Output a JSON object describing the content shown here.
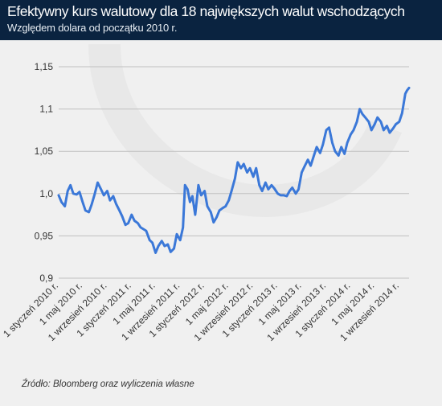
{
  "header": {
    "title": "Efektywny kurs walutowy dla 18 największych walut wschodzących",
    "subtitle": "Względem dolara od początku 2010 r."
  },
  "source": "Źródło: Bloomberg oraz wyliczenia własne",
  "colors": {
    "header_bg": "#0a2340",
    "panel_bg": "#f0f0f0",
    "line": "#3b78d8",
    "grid": "#bfbfbf"
  },
  "chart_data": {
    "type": "line",
    "title": "Efektywny kurs walutowy dla 18 największych walut wschodzących",
    "subtitle": "Względem dolara od początku 2010 r.",
    "xlabel": "",
    "ylabel": "",
    "ylim": [
      0.9,
      1.15
    ],
    "yticks": [
      0.9,
      0.95,
      1.0,
      1.05,
      1.1,
      1.15
    ],
    "ytick_labels": [
      "0,9",
      "0,95",
      "1,0",
      "1,05",
      "1,1",
      "1,15"
    ],
    "grid": "horizontal",
    "xlim": [
      "2010-01-01",
      "2014-10-20"
    ],
    "xtick_labels": [
      {
        "date": "2010-01-01",
        "label": "1 styczeń 2010 r."
      },
      {
        "date": "2010-05-01",
        "label": "1 maj 2010 r."
      },
      {
        "date": "2010-09-01",
        "label": "1 wrzesień 2010 r."
      },
      {
        "date": "2011-01-01",
        "label": "1 styczeń 2011 r."
      },
      {
        "date": "2011-05-01",
        "label": "1 maj 2011 r."
      },
      {
        "date": "2011-09-01",
        "label": "1 wrzesień 2011 r."
      },
      {
        "date": "2012-01-01",
        "label": "1 styczeń 2012 r."
      },
      {
        "date": "2012-05-01",
        "label": "1 maj 2012 r."
      },
      {
        "date": "2012-09-01",
        "label": "1 wrzesień 2012 r."
      },
      {
        "date": "2013-01-01",
        "label": "1 styczeń 2013 r."
      },
      {
        "date": "2013-05-01",
        "label": "1 maj 2013 r."
      },
      {
        "date": "2013-09-01",
        "label": "1 wrzesień 2013 r."
      },
      {
        "date": "2014-01-01",
        "label": "1 styczeń 2014 r."
      },
      {
        "date": "2014-05-01",
        "label": "1 maj 2014 r."
      },
      {
        "date": "2014-09-01",
        "label": "1 wrzesień 2014 r."
      }
    ],
    "series": [
      {
        "points": [
          [
            "2010-01-01",
            0.998
          ],
          [
            "2010-01-15",
            0.99
          ],
          [
            "2010-02-01",
            0.985
          ],
          [
            "2010-02-15",
            1.003
          ],
          [
            "2010-03-01",
            1.01
          ],
          [
            "2010-03-15",
            1.0
          ],
          [
            "2010-04-01",
            0.999
          ],
          [
            "2010-04-15",
            1.002
          ],
          [
            "2010-05-01",
            0.99
          ],
          [
            "2010-05-15",
            0.98
          ],
          [
            "2010-06-01",
            0.978
          ],
          [
            "2010-06-15",
            0.987
          ],
          [
            "2010-07-01",
            1.0
          ],
          [
            "2010-07-15",
            1.013
          ],
          [
            "2010-08-01",
            1.005
          ],
          [
            "2010-08-15",
            0.998
          ],
          [
            "2010-09-01",
            1.003
          ],
          [
            "2010-09-15",
            0.992
          ],
          [
            "2010-10-01",
            0.997
          ],
          [
            "2010-10-15",
            0.988
          ],
          [
            "2010-11-01",
            0.98
          ],
          [
            "2010-11-15",
            0.973
          ],
          [
            "2010-12-01",
            0.963
          ],
          [
            "2010-12-15",
            0.965
          ],
          [
            "2011-01-01",
            0.975
          ],
          [
            "2011-01-15",
            0.968
          ],
          [
            "2011-02-01",
            0.965
          ],
          [
            "2011-02-15",
            0.96
          ],
          [
            "2011-03-01",
            0.958
          ],
          [
            "2011-03-15",
            0.956
          ],
          [
            "2011-04-01",
            0.945
          ],
          [
            "2011-04-15",
            0.942
          ],
          [
            "2011-05-01",
            0.93
          ],
          [
            "2011-05-15",
            0.938
          ],
          [
            "2011-06-01",
            0.944
          ],
          [
            "2011-06-15",
            0.938
          ],
          [
            "2011-07-01",
            0.94
          ],
          [
            "2011-07-15",
            0.931
          ],
          [
            "2011-08-01",
            0.935
          ],
          [
            "2011-08-15",
            0.952
          ],
          [
            "2011-09-01",
            0.945
          ],
          [
            "2011-09-15",
            0.96
          ],
          [
            "2011-09-25",
            1.01
          ],
          [
            "2011-10-08",
            1.005
          ],
          [
            "2011-10-20",
            0.99
          ],
          [
            "2011-11-01",
            0.997
          ],
          [
            "2011-11-15",
            0.975
          ],
          [
            "2011-12-01",
            1.01
          ],
          [
            "2011-12-15",
            0.998
          ],
          [
            "2012-01-01",
            1.003
          ],
          [
            "2012-01-15",
            0.985
          ],
          [
            "2012-02-01",
            0.978
          ],
          [
            "2012-02-15",
            0.966
          ],
          [
            "2012-03-01",
            0.972
          ],
          [
            "2012-03-15",
            0.98
          ],
          [
            "2012-04-01",
            0.983
          ],
          [
            "2012-04-15",
            0.985
          ],
          [
            "2012-05-01",
            0.992
          ],
          [
            "2012-05-15",
            1.003
          ],
          [
            "2012-06-01",
            1.018
          ],
          [
            "2012-06-15",
            1.037
          ],
          [
            "2012-07-01",
            1.03
          ],
          [
            "2012-07-15",
            1.035
          ],
          [
            "2012-08-01",
            1.025
          ],
          [
            "2012-08-15",
            1.03
          ],
          [
            "2012-09-01",
            1.02
          ],
          [
            "2012-09-15",
            1.03
          ],
          [
            "2012-10-01",
            1.01
          ],
          [
            "2012-10-15",
            1.003
          ],
          [
            "2012-11-01",
            1.013
          ],
          [
            "2012-11-15",
            1.005
          ],
          [
            "2012-12-01",
            1.01
          ],
          [
            "2012-12-15",
            1.006
          ],
          [
            "2013-01-01",
            1.0
          ],
          [
            "2013-01-15",
            0.998
          ],
          [
            "2013-02-01",
            0.998
          ],
          [
            "2013-02-15",
            0.997
          ],
          [
            "2013-03-01",
            1.003
          ],
          [
            "2013-03-15",
            1.007
          ],
          [
            "2013-04-01",
            1.0
          ],
          [
            "2013-04-15",
            1.005
          ],
          [
            "2013-05-01",
            1.025
          ],
          [
            "2013-05-15",
            1.032
          ],
          [
            "2013-06-01",
            1.04
          ],
          [
            "2013-06-15",
            1.033
          ],
          [
            "2013-07-01",
            1.045
          ],
          [
            "2013-07-15",
            1.055
          ],
          [
            "2013-08-01",
            1.048
          ],
          [
            "2013-08-15",
            1.058
          ],
          [
            "2013-09-01",
            1.075
          ],
          [
            "2013-09-15",
            1.078
          ],
          [
            "2013-10-01",
            1.06
          ],
          [
            "2013-10-15",
            1.05
          ],
          [
            "2013-11-01",
            1.045
          ],
          [
            "2013-11-15",
            1.055
          ],
          [
            "2013-12-01",
            1.047
          ],
          [
            "2013-12-15",
            1.06
          ],
          [
            "2014-01-01",
            1.07
          ],
          [
            "2014-01-15",
            1.075
          ],
          [
            "2014-02-01",
            1.085
          ],
          [
            "2014-02-15",
            1.1
          ],
          [
            "2014-03-01",
            1.094
          ],
          [
            "2014-03-15",
            1.09
          ],
          [
            "2014-04-01",
            1.085
          ],
          [
            "2014-04-15",
            1.075
          ],
          [
            "2014-05-01",
            1.082
          ],
          [
            "2014-05-15",
            1.09
          ],
          [
            "2014-06-01",
            1.085
          ],
          [
            "2014-06-15",
            1.075
          ],
          [
            "2014-07-01",
            1.08
          ],
          [
            "2014-07-15",
            1.072
          ],
          [
            "2014-08-01",
            1.077
          ],
          [
            "2014-08-15",
            1.082
          ],
          [
            "2014-09-01",
            1.085
          ],
          [
            "2014-09-15",
            1.095
          ],
          [
            "2014-10-01",
            1.118
          ],
          [
            "2014-10-10",
            1.122
          ],
          [
            "2014-10-20",
            1.125
          ]
        ]
      }
    ]
  }
}
